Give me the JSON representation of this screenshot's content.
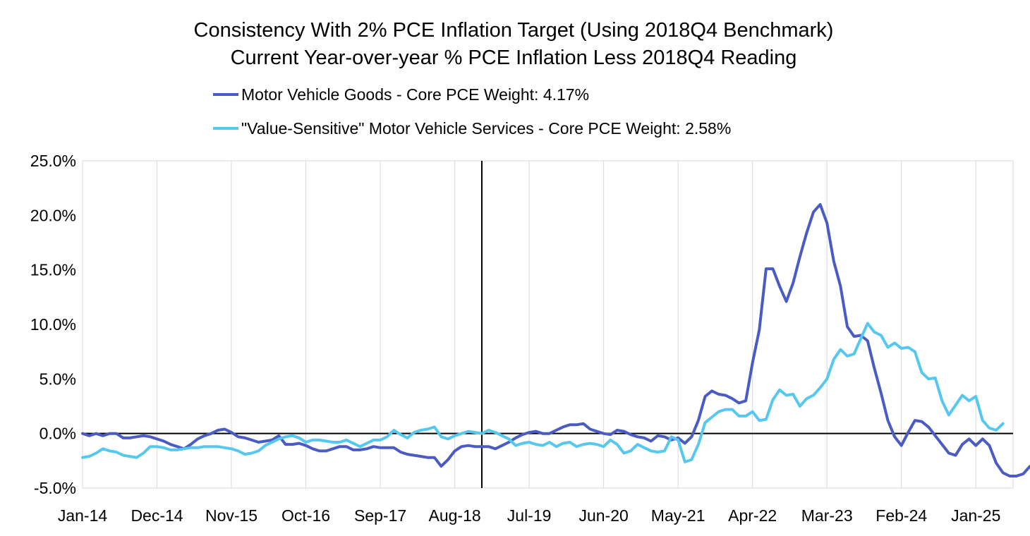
{
  "chart_data": {
    "type": "line",
    "title": "Consistency With 2% PCE Inflation Target (Using 2018Q4 Benchmark)",
    "subtitle": "Current Year-over-year % PCE Inflation Less 2018Q4 Reading",
    "xlabel": "",
    "ylabel": "",
    "ylim": [
      -5,
      25
    ],
    "y_ticks": [
      "-5.0%",
      "0.0%",
      "5.0%",
      "10.0%",
      "15.0%",
      "20.0%",
      "25.0%"
    ],
    "x_ticks": [
      "Jan-14",
      "Dec-14",
      "Nov-15",
      "Oct-16",
      "Sep-17",
      "Aug-18",
      "Jul-19",
      "Jun-20",
      "May-21",
      "Apr-22",
      "Mar-23",
      "Feb-24",
      "Jan-25"
    ],
    "x_start": "Jan-14",
    "x_months_between_ticks": 11,
    "grid": "vertical",
    "legend_position": "top",
    "benchmark_marker": "Dec-18",
    "series": [
      {
        "name": "Motor Vehicle Goods - Core PCE Weight: 4.17%",
        "color": "#4a5bc4",
        "values": [
          0,
          -0.2,
          0,
          -0.2,
          0,
          0,
          -0.4,
          -0.4,
          -0.3,
          -0.2,
          -0.3,
          -0.5,
          -0.7,
          -1.0,
          -1.2,
          -1.4,
          -1.0,
          -0.5,
          -0.2,
          0,
          0.3,
          0.4,
          0.1,
          -0.3,
          -0.4,
          -0.6,
          -0.8,
          -0.7,
          -0.6,
          -0.2,
          -1.0,
          -1.0,
          -0.9,
          -1.1,
          -1.4,
          -1.6,
          -1.6,
          -1.4,
          -1.2,
          -1.2,
          -1.5,
          -1.5,
          -1.4,
          -1.2,
          -1.3,
          -1.3,
          -1.3,
          -1.7,
          -1.9,
          -2.0,
          -2.1,
          -2.2,
          -2.2,
          -3.0,
          -2.4,
          -1.6,
          -1.2,
          -1.1,
          -1.2,
          -1.2,
          -1.2,
          -1.4,
          -1.1,
          -0.8,
          -0.4,
          -0.1,
          0.1,
          0.2,
          0,
          0,
          0.3,
          0.6,
          0.8,
          0.8,
          0.9,
          0.4,
          0.2,
          0,
          -0.1,
          0.3,
          0.2,
          -0.1,
          -0.3,
          -0.4,
          -0.7,
          -0.2,
          -0.3,
          -0.6,
          -0.4,
          -0.9,
          -0.3,
          1.2,
          3.4,
          3.9,
          3.6,
          3.5,
          3.2,
          2.8,
          3.0,
          6.5,
          9.5,
          15.1,
          15.1,
          13.5,
          12.1,
          13.8,
          16.2,
          18.4,
          20.3,
          21.0,
          19.3,
          15.8,
          13.5,
          9.8,
          8.9,
          9.0,
          8.5,
          6.0,
          3.7,
          1.2,
          -0.3,
          -1.1,
          0.1,
          1.2,
          1.1,
          0.6,
          -0.2,
          -1.0,
          -1.8,
          -2.0,
          -1.0,
          -0.5,
          -1.1,
          -0.5,
          -1.1,
          -2.7,
          -3.6,
          -3.9,
          -3.9,
          -3.7,
          -3.0
        ]
      },
      {
        "name": "\"Value-Sensitive\" Motor Vehicle Services - Core PCE Weight: 2.58%",
        "color": "#56c8f0",
        "values": [
          -2.2,
          -2.1,
          -1.8,
          -1.4,
          -1.6,
          -1.7,
          -2.0,
          -2.1,
          -2.2,
          -1.8,
          -1.2,
          -1.2,
          -1.3,
          -1.5,
          -1.5,
          -1.4,
          -1.3,
          -1.3,
          -1.2,
          -1.2,
          -1.2,
          -1.3,
          -1.4,
          -1.6,
          -1.9,
          -1.8,
          -1.6,
          -1.1,
          -0.8,
          -0.5,
          -0.3,
          -0.2,
          -0.4,
          -0.8,
          -0.6,
          -0.6,
          -0.7,
          -0.8,
          -0.8,
          -0.6,
          -0.9,
          -1.2,
          -0.9,
          -0.6,
          -0.6,
          -0.3,
          0.3,
          -0.1,
          -0.4,
          0.1,
          0.3,
          0.4,
          0.6,
          -0.3,
          -0.5,
          -0.2,
          0,
          0.2,
          0.1,
          0,
          0.3,
          0.1,
          -0.2,
          -0.5,
          -1.1,
          -0.9,
          -0.8,
          -1.0,
          -1.1,
          -0.8,
          -1.2,
          -0.9,
          -0.8,
          -1.2,
          -1.0,
          -0.9,
          -1.0,
          -1.2,
          -0.6,
          -1.0,
          -1.8,
          -1.6,
          -1.0,
          -1.3,
          -1.6,
          -1.7,
          -1.6,
          -0.3,
          -0.6,
          -2.6,
          -2.4,
          -1.0,
          1.0,
          1.5,
          2.0,
          2.2,
          2.2,
          1.6,
          1.6,
          2.0,
          1.2,
          1.3,
          3.1,
          4.0,
          3.5,
          3.6,
          2.5,
          3.2,
          3.5,
          4.2,
          5.0,
          6.8,
          7.7,
          7.1,
          7.3,
          8.7,
          10.1,
          9.3,
          9.0,
          7.9,
          8.3,
          7.8,
          7.9,
          7.5,
          5.6,
          5.0,
          5.1,
          3.0,
          1.7,
          2.6,
          3.5,
          3.0,
          3.4,
          1.2,
          0.5,
          0.3,
          0.9
        ]
      }
    ]
  }
}
